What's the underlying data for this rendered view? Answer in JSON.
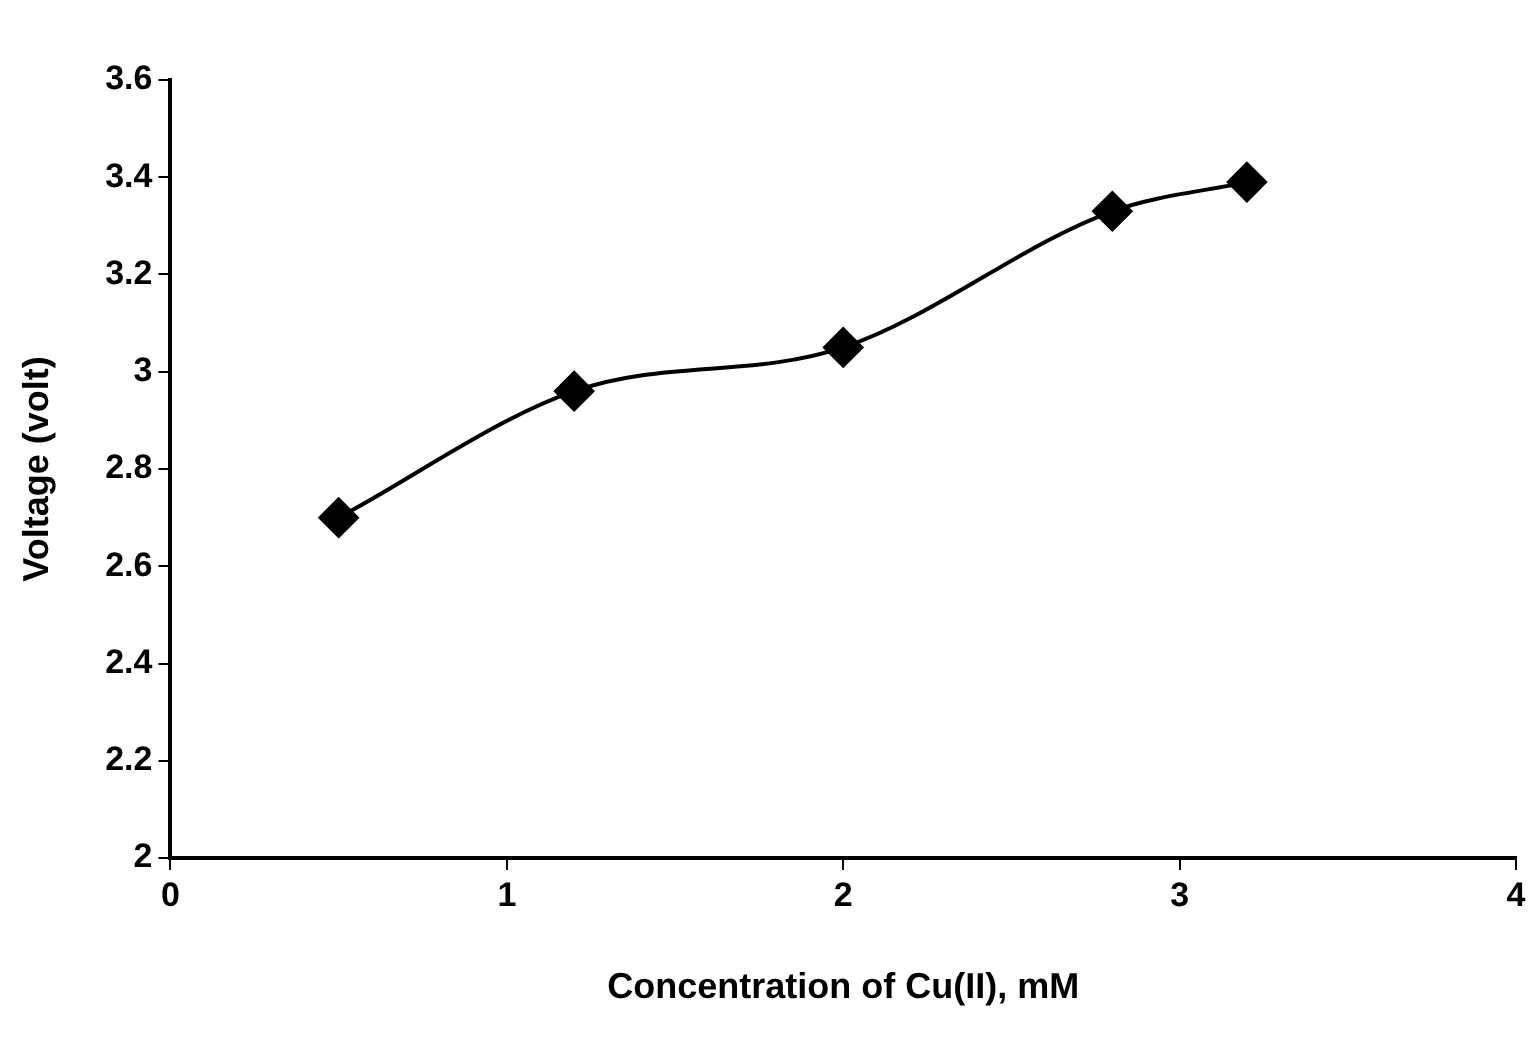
{
  "chart_data": {
    "type": "line",
    "xlabel": "Concentration of Cu(II), mM",
    "ylabel": "Voltage (volt)",
    "x": [
      0.5,
      1.2,
      2,
      2.8,
      3.2
    ],
    "series": [
      {
        "color": "#000000",
        "values": [
          2.7,
          2.96,
          3.05,
          3.33,
          3.39
        ]
      }
    ],
    "xlim": [
      0,
      4
    ],
    "xticks": [
      0,
      1,
      2,
      3,
      4
    ],
    "ylim": [
      2,
      3.6
    ],
    "yticks": [
      2,
      2.2,
      2.4,
      2.6,
      2.8,
      3,
      3.2,
      3.4,
      3.6
    ],
    "grid": false,
    "legend": false,
    "marker": "diamond",
    "line_style": "solid"
  }
}
